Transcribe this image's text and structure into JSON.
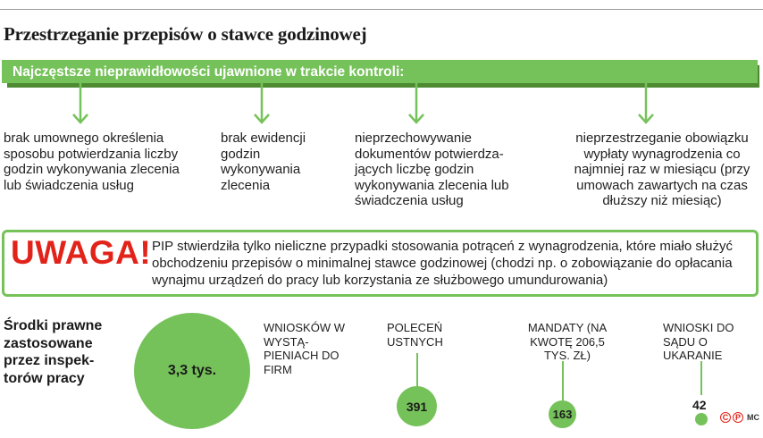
{
  "title": "Przestrzeganie przepisów o stawce godzinowej",
  "banner": "Najczęstsze nieprawidłowości ujawnione w trakcie kontroli:",
  "colors": {
    "accent": "#76c25a",
    "accent_dark": "#4d8a32",
    "warning": "#e2231a"
  },
  "items": [
    "brak umownego określenia sposobu potwierdzania liczby godzin wykonywania zlecenia lub świadczenia usług",
    "brak ewidencji godzin wykonywania zlecenia",
    "nieprzechowywanie dokumentów potwierdza-jących liczbę godzin wykonywania zlecenia lub świadczenia usług",
    "nieprzestrzeganie obowiązku wypłaty wynagrodzenia co najmniej raz w miesiącu (przy umowach zawartych na czas dłuższy niż miesiąc)"
  ],
  "warning": {
    "label": "UWAGA!",
    "text": "PIP stwierdziła tylko nieliczne przypadki stosowania potrąceń z wynagrodzenia, które miało służyć obchodzeniu przepisów o minimalnej stawce godzinowej (chodzi np. o zobowiązanie do opłacania wynajmu urządzeń do pracy lub korzystania ze służbowego umundurowania)"
  },
  "measures": {
    "title": "Środki prawne zastosowane przez inspek-torów pracy",
    "entries": [
      {
        "label": "WNIOSKÓW W WYSTĄ-PIENIACH DO FIRM",
        "value_label": "3,3 tys.",
        "value": 3300
      },
      {
        "label": "POLECEŃ USTNYCH",
        "value_label": "391",
        "value": 391
      },
      {
        "label": "MANDATY (NA KWOTĘ 206,5 TYS. ZŁ)",
        "value_label": "163",
        "value": 163
      },
      {
        "label": "WNIOSKI DO SĄDU O UKARANIE",
        "value_label": "42",
        "value": 42
      }
    ]
  },
  "footer": {
    "logo1": "C",
    "logo2": "P",
    "author": "MC"
  }
}
